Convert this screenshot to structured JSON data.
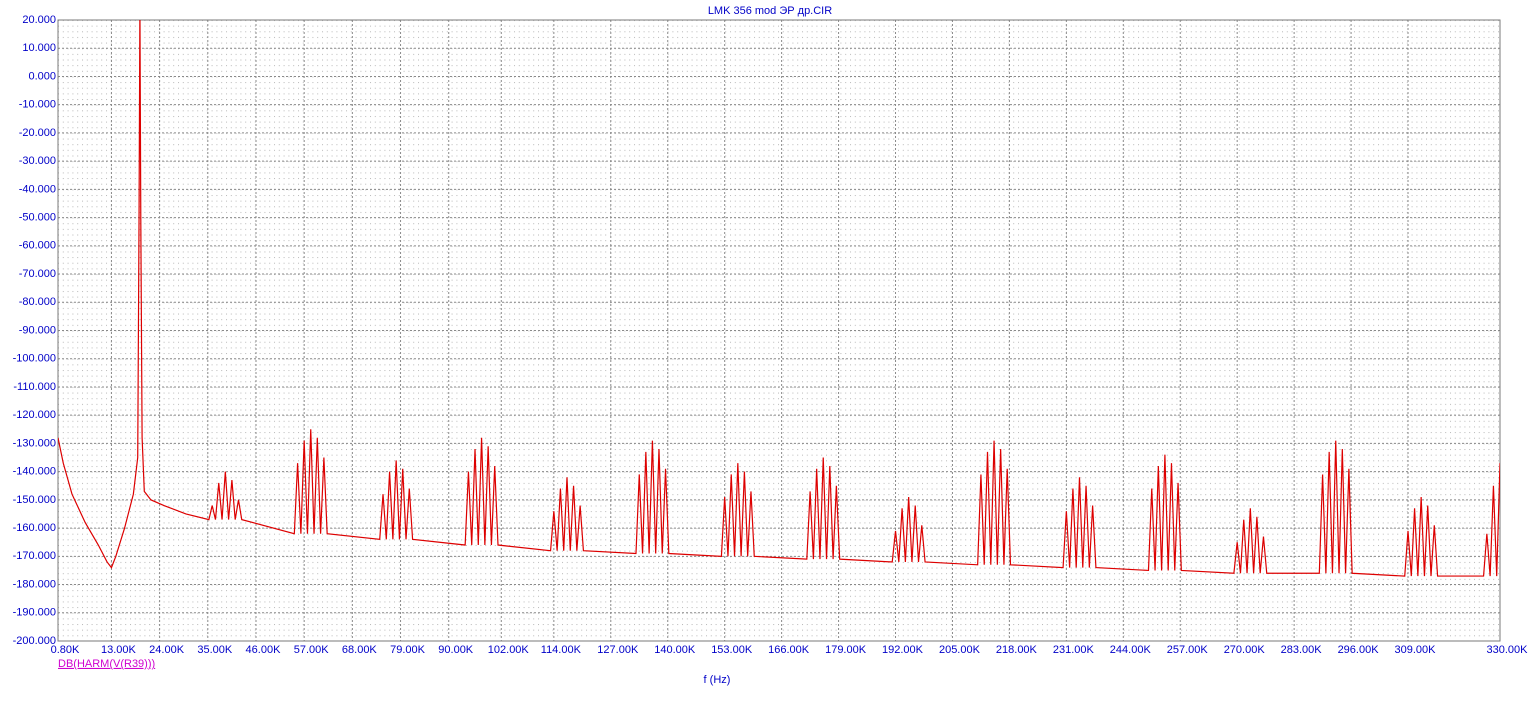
{
  "chart_data": {
    "type": "line",
    "title": "LMK 356 mod ЭР др.CIR",
    "x_label": "f (Hz)",
    "xlim": [
      0.8,
      330
    ],
    "ylim": [
      -200,
      20
    ],
    "grid": true,
    "xticks": [
      {
        "value": 0.8,
        "label": "0.80K"
      },
      {
        "value": 13,
        "label": "13.00K"
      },
      {
        "value": 24,
        "label": "24.00K"
      },
      {
        "value": 35,
        "label": "35.00K"
      },
      {
        "value": 46,
        "label": "46.00K"
      },
      {
        "value": 57,
        "label": "57.00K"
      },
      {
        "value": 68,
        "label": "68.00K"
      },
      {
        "value": 79,
        "label": "79.00K"
      },
      {
        "value": 90,
        "label": "90.00K"
      },
      {
        "value": 102,
        "label": "102.00K"
      },
      {
        "value": 114,
        "label": "114.00K"
      },
      {
        "value": 127,
        "label": "127.00K"
      },
      {
        "value": 140,
        "label": "140.00K"
      },
      {
        "value": 153,
        "label": "153.00K"
      },
      {
        "value": 166,
        "label": "166.00K"
      },
      {
        "value": 179,
        "label": "179.00K"
      },
      {
        "value": 192,
        "label": "192.00K"
      },
      {
        "value": 205,
        "label": "205.00K"
      },
      {
        "value": 218,
        "label": "218.00K"
      },
      {
        "value": 231,
        "label": "231.00K"
      },
      {
        "value": 244,
        "label": "244.00K"
      },
      {
        "value": 257,
        "label": "257.00K"
      },
      {
        "value": 270,
        "label": "270.00K"
      },
      {
        "value": 283,
        "label": "283.00K"
      },
      {
        "value": 296,
        "label": "296.00K"
      },
      {
        "value": 309,
        "label": "309.00K"
      },
      {
        "value": 330,
        "label": "330.00K"
      }
    ],
    "yticks": [
      {
        "value": 20,
        "label": "20.000"
      },
      {
        "value": 10,
        "label": "10.000"
      },
      {
        "value": 0,
        "label": "0.000"
      },
      {
        "value": -10,
        "label": "-10.000"
      },
      {
        "value": -20,
        "label": "-20.000"
      },
      {
        "value": -30,
        "label": "-30.000"
      },
      {
        "value": -40,
        "label": "-40.000"
      },
      {
        "value": -50,
        "label": "-50.000"
      },
      {
        "value": -60,
        "label": "-60.000"
      },
      {
        "value": -70,
        "label": "-70.000"
      },
      {
        "value": -80,
        "label": "-80.000"
      },
      {
        "value": -90,
        "label": "-90.000"
      },
      {
        "value": -100,
        "label": "-100.000"
      },
      {
        "value": -110,
        "label": "-110.000"
      },
      {
        "value": -120,
        "label": "-120.000"
      },
      {
        "value": -130,
        "label": "-130.000"
      },
      {
        "value": -140,
        "label": "-140.000"
      },
      {
        "value": -150,
        "label": "-150.000"
      },
      {
        "value": -160,
        "label": "-160.000"
      },
      {
        "value": -170,
        "label": "-170.000"
      },
      {
        "value": -180,
        "label": "-180.000"
      },
      {
        "value": -190,
        "label": "-190.000"
      },
      {
        "value": -200,
        "label": "-200.000"
      }
    ],
    "x": [
      0.8,
      2,
      4,
      7,
      10,
      12,
      13,
      14,
      16,
      18,
      19,
      19.3,
      19.5,
      19.7,
      20,
      20.5,
      22,
      25,
      30,
      35.25,
      36,
      36.75,
      37.5,
      38.25,
      39,
      39.75,
      40.5,
      41.25,
      42,
      42.75,
      54.75,
      55.5,
      56.25,
      57,
      57.75,
      58.5,
      59.25,
      60,
      60.75,
      61.5,
      62.25,
      74.25,
      75,
      75.75,
      76.5,
      77.25,
      78,
      78.75,
      79.5,
      80.25,
      81,
      81.75,
      93.75,
      94.5,
      95.25,
      96,
      96.75,
      97.5,
      98.25,
      99,
      99.75,
      100.5,
      101.25,
      113.25,
      114,
      114.75,
      115.5,
      116.25,
      117,
      117.75,
      118.5,
      119.25,
      120,
      120.75,
      132.75,
      133.5,
      134.25,
      135,
      135.75,
      136.5,
      137.25,
      138,
      138.75,
      139.5,
      140.25,
      152.25,
      153,
      153.75,
      154.5,
      155.25,
      156,
      156.75,
      157.5,
      158.25,
      159,
      159.75,
      171.75,
      172.5,
      173.25,
      174,
      174.75,
      175.5,
      176.25,
      177,
      177.75,
      178.5,
      179.25,
      191.25,
      192,
      192.75,
      193.5,
      194.25,
      195,
      195.75,
      196.5,
      197.25,
      198,
      198.75,
      210.75,
      211.5,
      212.25,
      213,
      213.75,
      214.5,
      215.25,
      216,
      216.75,
      217.5,
      218.25,
      230.25,
      231,
      231.75,
      232.5,
      233.25,
      234,
      234.75,
      235.5,
      236.25,
      237,
      237.75,
      249.75,
      250.5,
      251.25,
      252,
      252.75,
      253.5,
      254.25,
      255,
      255.75,
      256.5,
      257.25,
      269.25,
      270,
      270.75,
      271.5,
      272.25,
      273,
      273.75,
      274.5,
      275.25,
      276,
      276.75,
      288.75,
      289.5,
      290.25,
      291,
      291.75,
      292.5,
      293.25,
      294,
      294.75,
      295.5,
      296.25,
      308.25,
      309,
      309.75,
      310.5,
      311.25,
      312,
      312.75,
      313.5,
      314.25,
      315,
      315.75,
      326.25,
      327,
      327.75,
      328.5,
      329.25,
      330
    ],
    "series": [
      {
        "name": "DB(HARM(V(R39)))",
        "color": "#dd0000",
        "values": [
          -128,
          -137,
          -148,
          -158,
          -166,
          -172,
          -174,
          -170,
          -160,
          -148,
          -135,
          -50,
          25,
          -50,
          -128,
          -147,
          -150,
          -152,
          -155,
          -157,
          -152,
          -157,
          -144,
          -157,
          -140,
          -157,
          -143,
          -157,
          -150,
          -157,
          -162,
          -137,
          -162,
          -129,
          -162,
          -125,
          -162,
          -128,
          -162,
          -135,
          -162,
          -164,
          -148,
          -164,
          -140,
          -164,
          -136,
          -164,
          -139,
          -164,
          -146,
          -164,
          -166,
          -140,
          -166,
          -132,
          -166,
          -128,
          -166,
          -131,
          -166,
          -138,
          -166,
          -168,
          -154,
          -168,
          -146,
          -168,
          -142,
          -168,
          -145,
          -168,
          -152,
          -168,
          -169,
          -141,
          -169,
          -133,
          -169,
          -129,
          -169,
          -132,
          -169,
          -139,
          -169,
          -170,
          -149,
          -170,
          -141,
          -170,
          -137,
          -170,
          -140,
          -170,
          -147,
          -170,
          -171,
          -147,
          -171,
          -139,
          -171,
          -135,
          -171,
          -138,
          -171,
          -145,
          -171,
          -172,
          -161,
          -172,
          -153,
          -172,
          -149,
          -172,
          -152,
          -172,
          -159,
          -172,
          -173,
          -141,
          -173,
          -133,
          -173,
          -129,
          -173,
          -132,
          -173,
          -139,
          -173,
          -174,
          -154,
          -174,
          -146,
          -174,
          -142,
          -174,
          -145,
          -174,
          -152,
          -174,
          -175,
          -146,
          -175,
          -138,
          -175,
          -134,
          -175,
          -137,
          -175,
          -144,
          -175,
          -176,
          -165,
          -176,
          -157,
          -176,
          -153,
          -176,
          -156,
          -176,
          -163,
          -176,
          -176,
          -141,
          -176,
          -133,
          -176,
          -129,
          -176,
          -132,
          -176,
          -139,
          -176,
          -177,
          -161,
          -177,
          -153,
          -177,
          -149,
          -177,
          -152,
          -177,
          -159,
          -177,
          -177,
          -162,
          -177,
          -145,
          -177,
          -137
        ]
      }
    ]
  }
}
